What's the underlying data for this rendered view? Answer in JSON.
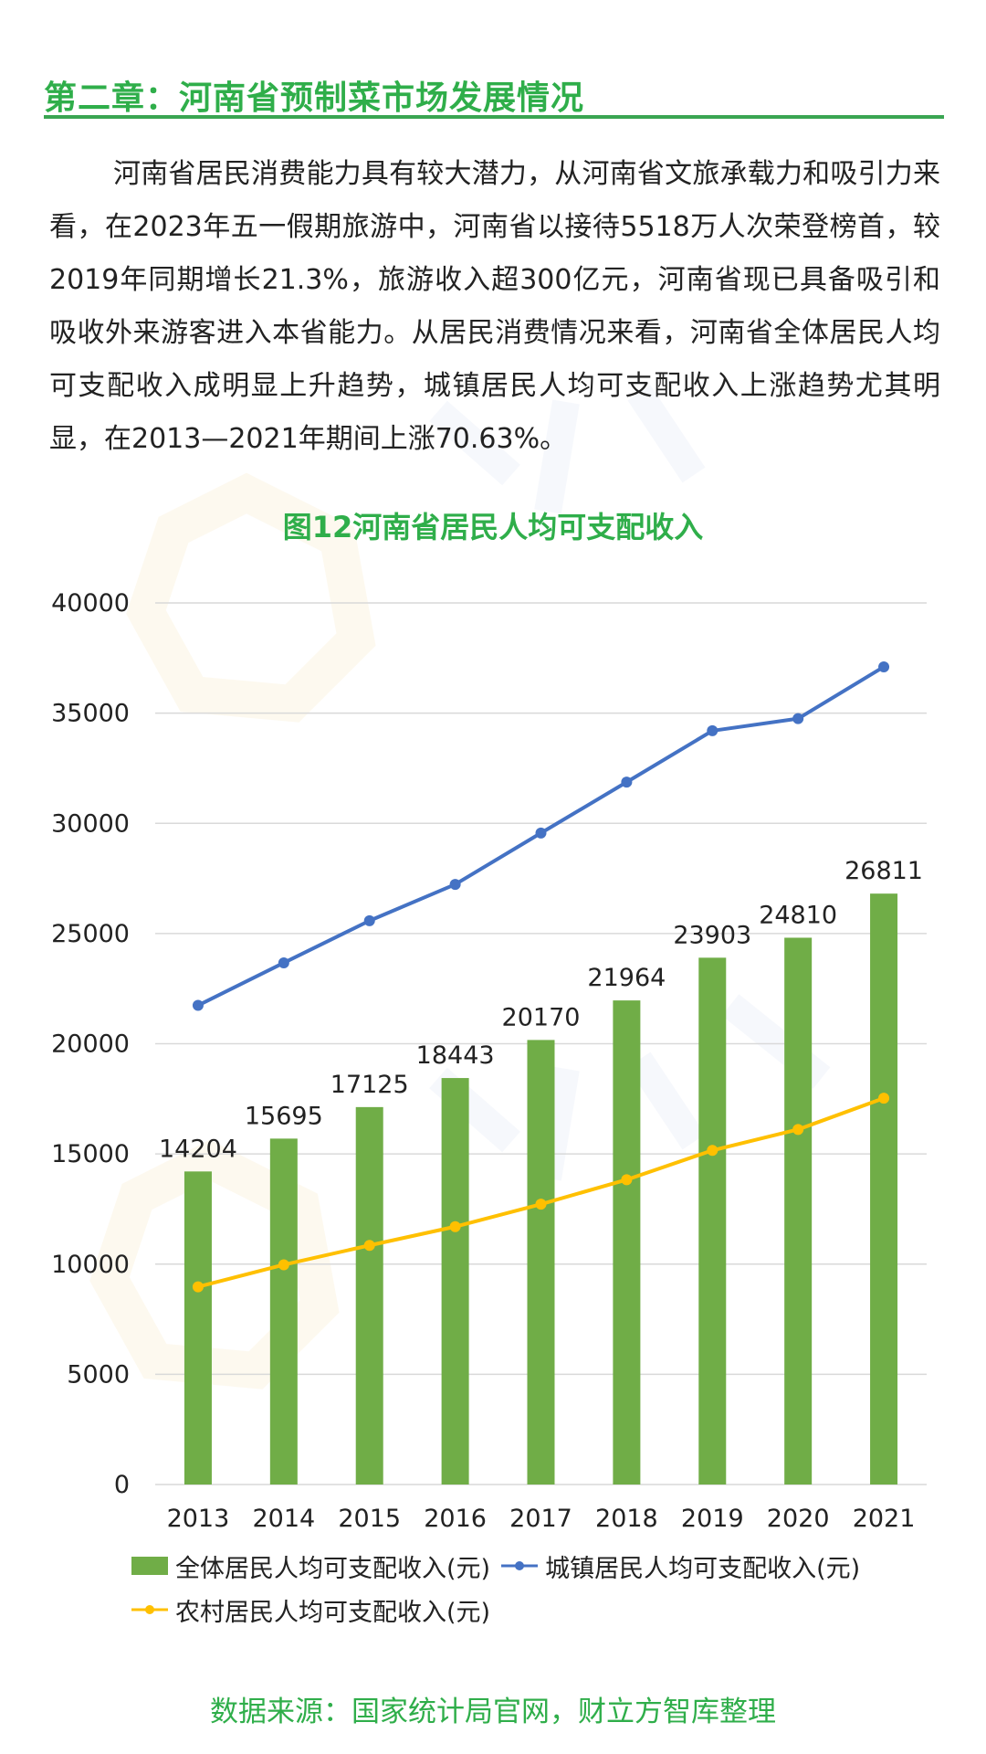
{
  "header": {
    "chapter_title": "第二章：河南省预制菜市场发展情况"
  },
  "body": {
    "paragraph": "河南省居民消费能力具有较大潜力，从河南省文旅承载力和吸引力来看，在2023年五一假期旅游中，河南省以接待5518万人次荣登榜首，较2019年同期增长21.3%，旅游收入超300亿元，河南省现已具备吸引和吸收外来游客进入本省能力。从居民消费情况来看，河南省全体居民人均可支配收入成明显上升趋势，城镇居民人均可支配收入上涨趋势尤其明显，在2013—2021年期间上涨70.63%。"
  },
  "chart_data": {
    "type": "bar",
    "title": "图12河南省居民人均可支配收入",
    "categories": [
      "2013",
      "2014",
      "2015",
      "2016",
      "2017",
      "2018",
      "2019",
      "2020",
      "2021"
    ],
    "ylim": [
      0,
      40000
    ],
    "yticks": [
      "0",
      "5000",
      "10000",
      "15000",
      "20000",
      "25000",
      "30000",
      "35000",
      "40000"
    ],
    "grid": true,
    "legend_position": "bottom",
    "series": [
      {
        "name": "全体居民人均可支配收入(元)",
        "kind": "bar",
        "color": "#70ad47",
        "values": [
          14204,
          15695,
          17125,
          18443,
          20170,
          21964,
          23903,
          24810,
          26811
        ],
        "labels": [
          "14204",
          "15695",
          "17125",
          "18443",
          "20170",
          "21964",
          "23903",
          "24810",
          "26811"
        ]
      },
      {
        "name": "城镇居民人均可支配收入(元)",
        "kind": "line",
        "color": "#4472c4",
        "values": [
          21740,
          23670,
          25580,
          27230,
          29560,
          31870,
          34200,
          34750,
          37100
        ]
      },
      {
        "name": "农村居民人均可支配收入(元)",
        "kind": "line",
        "color": "#ffc000",
        "values": [
          8970,
          9970,
          10850,
          11700,
          12720,
          13830,
          15160,
          16110,
          17530
        ]
      }
    ]
  },
  "footer": {
    "source": "数据来源：国家统计局官网，财立方智库整理"
  },
  "colors": {
    "accent_green": "#2fae4a",
    "rule_green": "#3aa552",
    "bar_green": "#70ad47",
    "line_blue": "#4472c4",
    "line_yellow": "#ffc000",
    "grid": "#d9d9d9"
  }
}
